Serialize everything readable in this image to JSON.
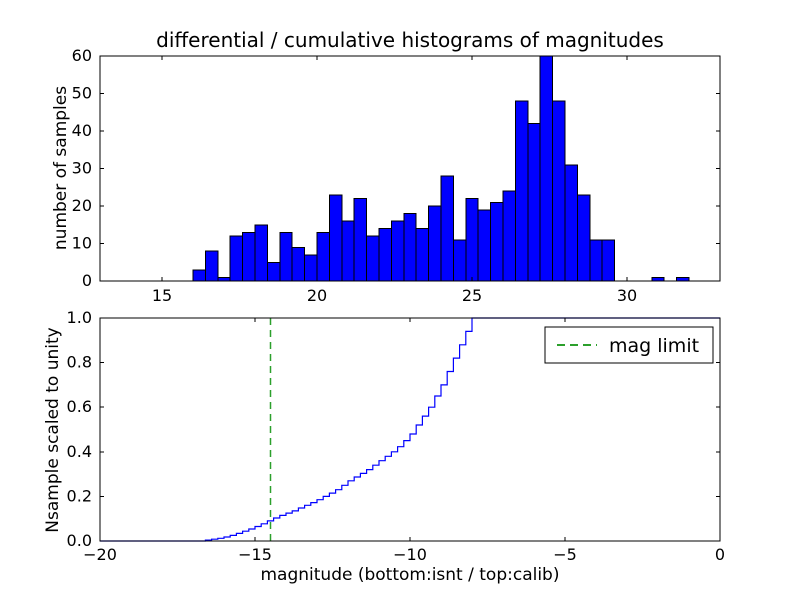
{
  "chart_data": [
    {
      "type": "bar",
      "role": "differential-histogram",
      "title": "differential / cumulative histograms of magnitudes",
      "ylabel": "number of samples",
      "xlim": [
        13,
        33
      ],
      "ylim": [
        0,
        60
      ],
      "xticks": [
        15,
        20,
        25,
        30
      ],
      "xtick_labels": [
        "15",
        "20",
        "25",
        "30"
      ],
      "yticks": [
        0,
        10,
        20,
        30,
        40,
        50,
        60
      ],
      "ytick_labels": [
        "0",
        "10",
        "20",
        "30",
        "40",
        "50",
        "60"
      ],
      "grid": false,
      "bar_color": "#0000ff",
      "bar_edge_color": "#000000",
      "bin_width": 0.4,
      "bar_x": [
        16.0,
        16.4,
        16.8,
        17.2,
        17.6,
        18.0,
        18.4,
        18.8,
        19.2,
        19.6,
        20.0,
        20.4,
        20.8,
        21.2,
        21.6,
        22.0,
        22.4,
        22.8,
        23.2,
        23.6,
        24.0,
        24.4,
        24.8,
        25.2,
        25.6,
        26.0,
        26.4,
        26.8,
        27.2,
        27.6,
        28.0,
        28.4,
        28.8,
        29.2,
        30.8,
        31.6
      ],
      "bar_counts": [
        3,
        8,
        1,
        12,
        13,
        15,
        5,
        13,
        9,
        7,
        13,
        23,
        16,
        22,
        12,
        14,
        16,
        18,
        14,
        20,
        28,
        11,
        22,
        19,
        21,
        24,
        48,
        42,
        60,
        48,
        31,
        23,
        11,
        11,
        1,
        1
      ]
    },
    {
      "type": "line",
      "role": "cumulative-histogram",
      "xlabel": "magnitude (bottom:isnt / top:calib)",
      "ylabel": "Nsample scaled to unity",
      "xlim": [
        -20,
        0
      ],
      "ylim": [
        0.0,
        1.0
      ],
      "xticks": [
        -20,
        -15,
        -10,
        -5,
        0
      ],
      "xtick_labels": [
        "−20",
        "−15",
        "−10",
        "−5",
        "0"
      ],
      "yticks": [
        0.0,
        0.2,
        0.4,
        0.6,
        0.8,
        1.0
      ],
      "ytick_labels": [
        "0.0",
        "0.2",
        "0.4",
        "0.6",
        "0.8",
        "1.0"
      ],
      "grid": false,
      "line_color": "#0000ff",
      "steps": [
        [
          -20.0,
          0.0
        ],
        [
          -16.6,
          0.004
        ],
        [
          -16.4,
          0.008
        ],
        [
          -16.2,
          0.012
        ],
        [
          -16.0,
          0.018
        ],
        [
          -15.8,
          0.025
        ],
        [
          -15.6,
          0.034
        ],
        [
          -15.4,
          0.044
        ],
        [
          -15.2,
          0.054
        ],
        [
          -15.0,
          0.065
        ],
        [
          -14.8,
          0.077
        ],
        [
          -14.6,
          0.09
        ],
        [
          -14.4,
          0.103
        ],
        [
          -14.2,
          0.115
        ],
        [
          -14.0,
          0.125
        ],
        [
          -13.8,
          0.135
        ],
        [
          -13.6,
          0.148
        ],
        [
          -13.4,
          0.16
        ],
        [
          -13.2,
          0.172
        ],
        [
          -13.0,
          0.185
        ],
        [
          -12.8,
          0.2
        ],
        [
          -12.6,
          0.215
        ],
        [
          -12.4,
          0.23
        ],
        [
          -12.2,
          0.25
        ],
        [
          -12.0,
          0.27
        ],
        [
          -11.8,
          0.287
        ],
        [
          -11.6,
          0.303
        ],
        [
          -11.4,
          0.32
        ],
        [
          -11.2,
          0.34
        ],
        [
          -11.0,
          0.36
        ],
        [
          -10.8,
          0.38
        ],
        [
          -10.6,
          0.4
        ],
        [
          -10.4,
          0.423
        ],
        [
          -10.2,
          0.45
        ],
        [
          -10.0,
          0.48
        ],
        [
          -9.8,
          0.52
        ],
        [
          -9.6,
          0.56
        ],
        [
          -9.4,
          0.6
        ],
        [
          -9.2,
          0.65
        ],
        [
          -9.0,
          0.7
        ],
        [
          -8.8,
          0.76
        ],
        [
          -8.6,
          0.82
        ],
        [
          -8.4,
          0.88
        ],
        [
          -8.2,
          0.94
        ],
        [
          -8.0,
          1.0
        ],
        [
          0.0,
          1.0
        ]
      ],
      "mag_limit": {
        "x": -14.5,
        "color": "#2ca02c",
        "style": "dashed",
        "label": "mag limit"
      },
      "legend": {
        "position": "upper right",
        "entries": [
          {
            "label": "mag limit",
            "color": "#2ca02c",
            "dashed": true
          }
        ]
      }
    }
  ]
}
